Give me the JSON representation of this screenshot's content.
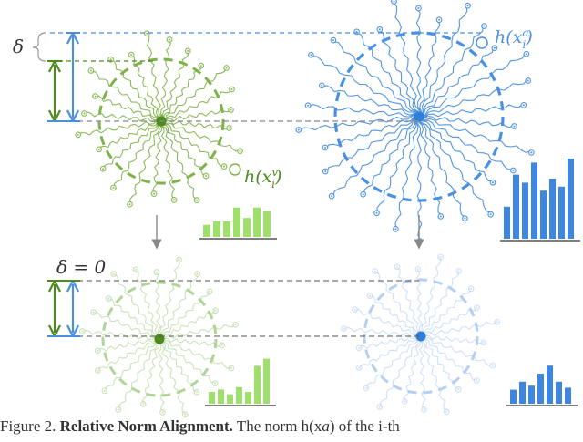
{
  "labels": {
    "delta": "δ",
    "delta_zero": "δ = 0",
    "h_visual": "h(x",
    "h_visual_sup": "v",
    "h_visual_sub": "i",
    "h_audio": "h(x",
    "h_audio_sup": "a",
    "h_audio_sub": "i"
  },
  "caption": {
    "prefix": "Figure 2. ",
    "bold": "Relative Norm Alignment.",
    "rest": " The norm h(x",
    "tail": ") of the i-th"
  },
  "colors": {
    "green_dark": "#4e8a1e",
    "green": "#7fb24a",
    "green_light": "#a8d08d",
    "green_bar": "#9fe06d",
    "blue_dark": "#2f7fd8",
    "blue": "#4a90e2",
    "blue_light": "#a9c8ef",
    "blue_bar": "#3f87de",
    "gray": "#888888"
  },
  "histograms": {
    "top_green": [
      0.35,
      0.45,
      0.45,
      0.85,
      0.55,
      0.85,
      0.75
    ],
    "top_blue": [
      0.4,
      0.8,
      0.7,
      0.95,
      0.6,
      0.75,
      0.65,
      1.0
    ],
    "bottom_green": [
      0.25,
      0.3,
      0.2,
      0.35,
      0.25,
      0.8,
      0.95
    ],
    "bottom_blue": [
      0.35,
      0.55,
      0.45,
      0.75,
      0.95,
      0.55,
      0.4
    ]
  }
}
